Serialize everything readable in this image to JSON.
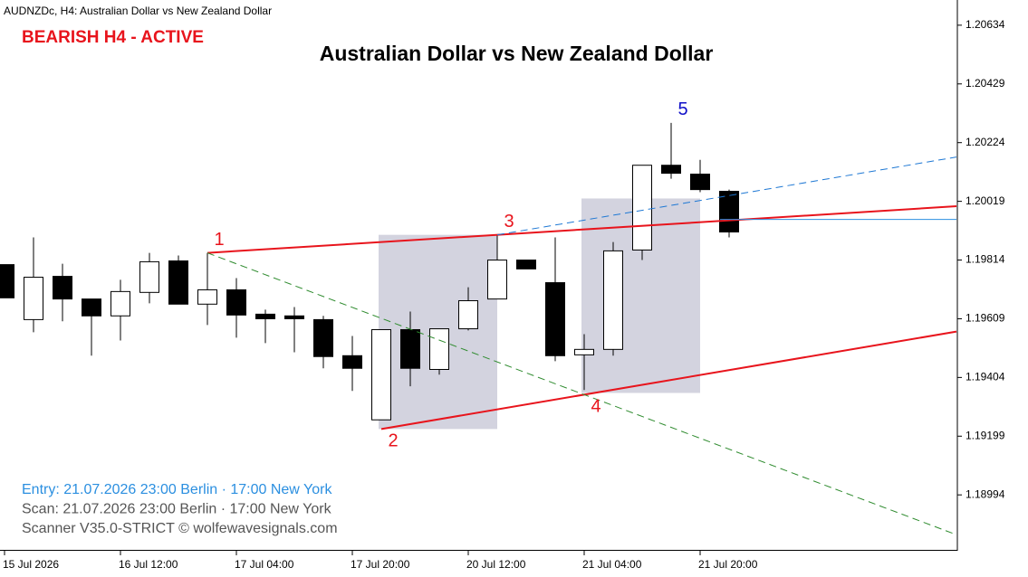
{
  "chart_data": {
    "type": "candlestick",
    "header": "AUDNZDc, H4:  Australian Dollar vs New Zealand Dollar",
    "status": "BEARISH H4 - ACTIVE",
    "status_color": "#e8141c",
    "title": "Australian Dollar vs New Zealand Dollar",
    "footer": [
      {
        "text": "Entry: 21.07.2026  23:00 Berlin · 17:00 New York",
        "color": "#2b8fe0"
      },
      {
        "text": "Scan:  21.07.2026  23:00 Berlin · 17:00 New York",
        "color": "#555555"
      },
      {
        "text": "Scanner V35.0-STRICT   © wolfewavesignals.com",
        "color": "#555555"
      }
    ],
    "categories": [
      "15 Jul 2026",
      null,
      null,
      null,
      "16 Jul 12:00",
      null,
      null,
      null,
      "17 Jul 04:00",
      null,
      null,
      null,
      "17 Jul 20:00",
      null,
      null,
      null,
      "20 Jul 12:00",
      null,
      null,
      null,
      "21 Jul 04:00",
      null,
      null,
      null,
      "21 Jul 20:00",
      null
    ],
    "open": [
      1.19798,
      1.19606,
      1.19757,
      1.19678,
      1.19619,
      1.19701,
      1.19811,
      1.1966,
      1.1971,
      1.19625,
      1.19619,
      1.19606,
      1.1948,
      1.19256,
      1.19571,
      1.19432,
      1.19574,
      1.19678,
      1.19814,
      1.19735,
      1.19483,
      1.19502,
      1.19849,
      1.20145,
      1.20114,
      1.20054
    ],
    "high": [
      1.19798,
      1.19893,
      1.19801,
      1.19678,
      1.19745,
      1.19839,
      1.1983,
      1.19839,
      1.19751,
      1.19641,
      1.1965,
      1.19619,
      1.19549,
      1.19571,
      1.19634,
      1.19574,
      1.19719,
      1.19902,
      1.19814,
      1.19893,
      1.19555,
      1.19877,
      1.20145,
      1.20293,
      1.20164,
      1.2006
    ],
    "low": [
      1.19682,
      1.19562,
      1.196,
      1.1948,
      1.19533,
      1.19663,
      1.1966,
      1.19587,
      1.19543,
      1.19524,
      1.19492,
      1.19436,
      1.19357,
      1.19256,
      1.19373,
      1.19414,
      1.19568,
      1.19678,
      1.19783,
      1.19461,
      1.1936,
      1.1948,
      1.19814,
      1.20098,
      1.20051,
      1.19893
    ],
    "close": [
      1.19682,
      1.19754,
      1.19678,
      1.19619,
      1.19704,
      1.19808,
      1.1966,
      1.1971,
      1.19622,
      1.19609,
      1.19609,
      1.19477,
      1.19436,
      1.19571,
      1.19436,
      1.19574,
      1.19672,
      1.19814,
      1.19783,
      1.1948,
      1.19502,
      1.19846,
      1.20145,
      1.20117,
      1.2006,
      1.19912
    ],
    "ylim": [
      1.18802,
      1.20722
    ],
    "yticks": [
      1.18994,
      1.19199,
      1.19404,
      1.19609,
      1.19814,
      1.20019,
      1.20224,
      1.20429,
      1.20634
    ],
    "waves": [
      {
        "label": "1",
        "index": 7,
        "price": 1.19839,
        "color": "#e8141c",
        "side": "above"
      },
      {
        "label": "2",
        "index": 13,
        "price": 1.19224,
        "color": "#e8141c",
        "side": "below"
      },
      {
        "label": "3",
        "index": 17,
        "price": 1.19902,
        "color": "#e8141c",
        "side": "above"
      },
      {
        "label": "4",
        "index": 20,
        "price": 1.19344,
        "color": "#e8141c",
        "side": "below"
      },
      {
        "label": "5",
        "index": 23,
        "price": 1.20293,
        "color": "#1010c8",
        "side": "above"
      }
    ],
    "zones": [
      {
        "from": 13,
        "to": 17,
        "low": 1.19224,
        "high": 1.19902,
        "color": "#d3d3df"
      },
      {
        "from": 20,
        "to": 24,
        "low": 1.1935,
        "high": 1.20029,
        "color": "#d3d3df"
      }
    ],
    "lines": [
      {
        "a": 0,
        "b": 2,
        "color": "#e8141c",
        "width": 2
      },
      {
        "a": 1,
        "b": 3,
        "color": "#e8141c",
        "width": 2
      },
      {
        "a": 0,
        "b": 3,
        "color": "#2e8b2e",
        "width": 1,
        "dash": "8 5"
      },
      {
        "a": 2,
        "parallel": [
          1,
          3
        ],
        "color": "#1e78d4",
        "width": 1,
        "dash": "8 5"
      }
    ],
    "entry_line": {
      "from": 25,
      "price": 1.19956,
      "color": "#2b8fe0"
    }
  }
}
